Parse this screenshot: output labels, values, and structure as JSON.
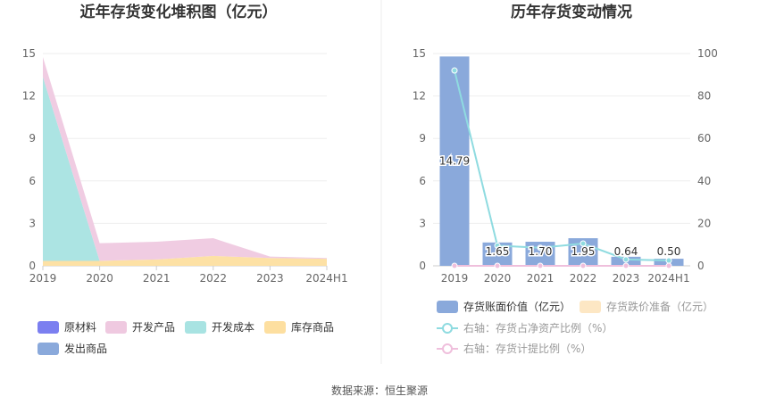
{
  "footer": {
    "source": "数据来源：恒生聚源"
  },
  "colors": {
    "raw_materials": "#7b7ff0",
    "dev_products": "#efc9e0",
    "dev_costs": "#a8e3e2",
    "stock_goods": "#fddfa0",
    "shipped_goods": "#8aa9db",
    "book_value_bar": "#8aa9db",
    "impairment_bar": "#fde7c4",
    "net_asset_ratio_line": "#8fdbe0",
    "provision_ratio_line": "#efbfdc"
  },
  "chart_data": [
    {
      "type": "area",
      "title": "近年存货变化堆积图（亿元）",
      "categories": [
        "2019",
        "2020",
        "2021",
        "2022",
        "2023",
        "2024H1"
      ],
      "ylim": [
        0,
        15
      ],
      "yticks": [
        "0",
        "3",
        "6",
        "9",
        "12",
        "15"
      ],
      "grid": true,
      "legend_position": "bottom",
      "series": [
        {
          "name": "原材料",
          "values": [
            0,
            0,
            0,
            0,
            0,
            0
          ]
        },
        {
          "name": "开发产品",
          "values": [
            1.4,
            1.25,
            1.25,
            1.25,
            0.1,
            0.05
          ]
        },
        {
          "name": "开发成本",
          "values": [
            13.0,
            0,
            0,
            0,
            0,
            0
          ]
        },
        {
          "name": "库存商品",
          "values": [
            0.35,
            0.35,
            0.45,
            0.7,
            0.55,
            0.5
          ]
        },
        {
          "name": "发出商品",
          "values": [
            0,
            0,
            0,
            0,
            0,
            0
          ]
        }
      ]
    },
    {
      "type": "bar",
      "title": "历年存货变动情况",
      "categories": [
        "2019",
        "2020",
        "2021",
        "2022",
        "2023",
        "2024H1"
      ],
      "ylim": [
        0,
        15
      ],
      "yticks": [
        "0",
        "3",
        "6",
        "9",
        "12",
        "15"
      ],
      "y2lim": [
        0,
        100
      ],
      "y2ticks": [
        "0",
        "20",
        "40",
        "60",
        "80",
        "100"
      ],
      "grid": true,
      "legend_position": "bottom",
      "series": [
        {
          "name": "存货账面价值（亿元）",
          "kind": "bar",
          "axis": "left",
          "values": [
            14.79,
            1.65,
            1.7,
            1.95,
            0.64,
            0.5
          ],
          "labels": [
            "14.79",
            "1.65",
            "1.70",
            "1.95",
            "0.64",
            "0.50"
          ]
        },
        {
          "name": "存货跌价准备（亿元）",
          "kind": "bar",
          "axis": "left",
          "values": [
            0,
            0,
            0,
            0,
            0,
            0
          ]
        },
        {
          "name": "右轴：存货占净资产比例（%）",
          "kind": "line",
          "axis": "right",
          "values": [
            92,
            9.5,
            8.5,
            10.5,
            3,
            2.5
          ]
        },
        {
          "name": "右轴：存货计提比例（%）",
          "kind": "line",
          "axis": "right",
          "values": [
            0,
            0,
            0,
            0,
            0,
            0
          ]
        }
      ]
    }
  ]
}
